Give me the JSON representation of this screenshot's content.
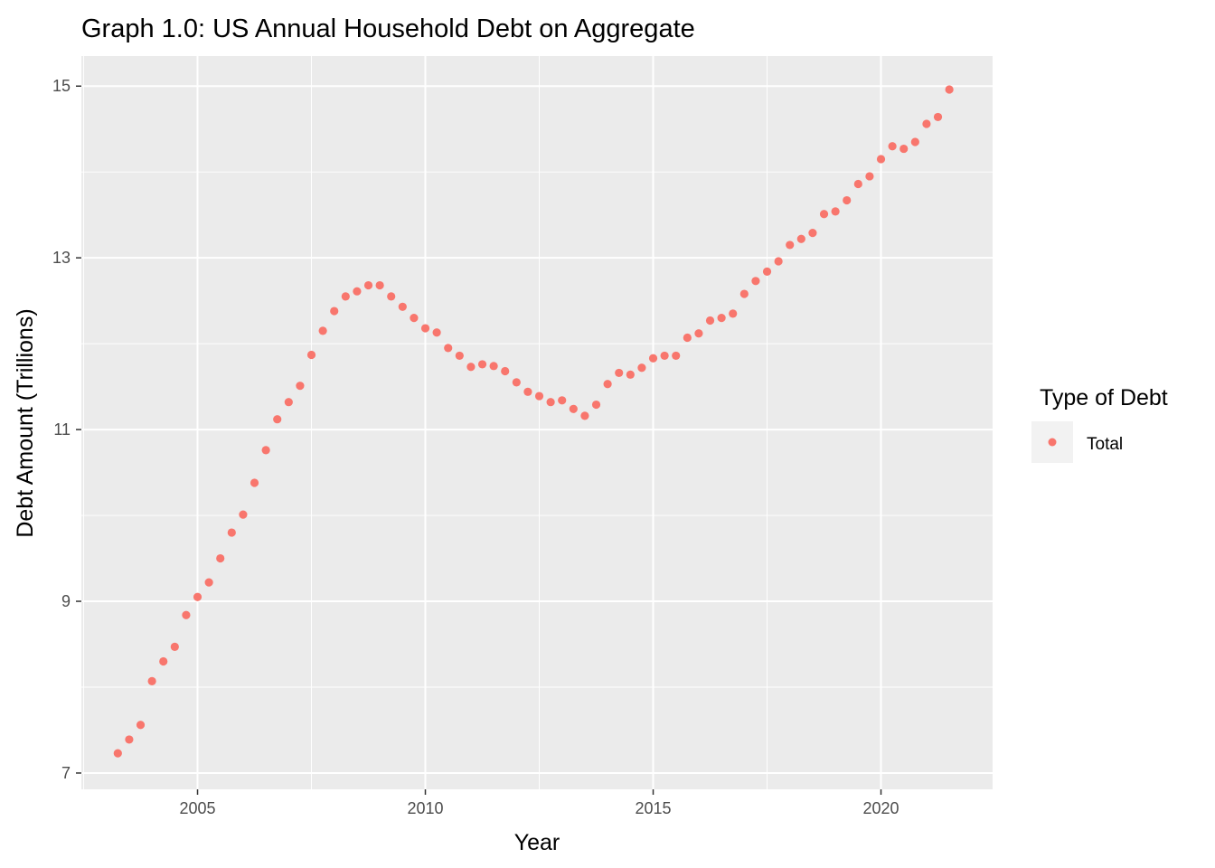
{
  "chart_data": {
    "type": "scatter",
    "title": "Graph 1.0: US Annual Household Debt on Aggregate",
    "xlabel": "Year",
    "ylabel": "Debt Amount (Trillions)",
    "xlim": [
      2002.45,
      2022.45
    ],
    "ylim": [
      6.81,
      15.35
    ],
    "x_ticks": [
      2005,
      2010,
      2015,
      2020
    ],
    "y_ticks": [
      7,
      9,
      11,
      13,
      15
    ],
    "grid": true,
    "legend": {
      "title": "Type of Debt",
      "position": "right"
    },
    "series": [
      {
        "name": "Total",
        "color": "#F8766D",
        "points": [
          {
            "x": 2003.25,
            "y": 7.23
          },
          {
            "x": 2003.5,
            "y": 7.39
          },
          {
            "x": 2003.75,
            "y": 7.56
          },
          {
            "x": 2004.0,
            "y": 8.07
          },
          {
            "x": 2004.25,
            "y": 8.3
          },
          {
            "x": 2004.5,
            "y": 8.47
          },
          {
            "x": 2004.75,
            "y": 8.84
          },
          {
            "x": 2005.0,
            "y": 9.05
          },
          {
            "x": 2005.25,
            "y": 9.22
          },
          {
            "x": 2005.5,
            "y": 9.5
          },
          {
            "x": 2005.75,
            "y": 9.8
          },
          {
            "x": 2006.0,
            "y": 10.01
          },
          {
            "x": 2006.25,
            "y": 10.38
          },
          {
            "x": 2006.5,
            "y": 10.76
          },
          {
            "x": 2006.75,
            "y": 11.12
          },
          {
            "x": 2007.0,
            "y": 11.32
          },
          {
            "x": 2007.25,
            "y": 11.51
          },
          {
            "x": 2007.5,
            "y": 11.87
          },
          {
            "x": 2007.75,
            "y": 12.15
          },
          {
            "x": 2008.0,
            "y": 12.38
          },
          {
            "x": 2008.25,
            "y": 12.55
          },
          {
            "x": 2008.5,
            "y": 12.61
          },
          {
            "x": 2008.75,
            "y": 12.68
          },
          {
            "x": 2009.0,
            "y": 12.68
          },
          {
            "x": 2009.25,
            "y": 12.55
          },
          {
            "x": 2009.5,
            "y": 12.43
          },
          {
            "x": 2009.75,
            "y": 12.3
          },
          {
            "x": 2010.0,
            "y": 12.18
          },
          {
            "x": 2010.25,
            "y": 12.13
          },
          {
            "x": 2010.5,
            "y": 11.95
          },
          {
            "x": 2010.75,
            "y": 11.86
          },
          {
            "x": 2011.0,
            "y": 11.73
          },
          {
            "x": 2011.25,
            "y": 11.76
          },
          {
            "x": 2011.5,
            "y": 11.74
          },
          {
            "x": 2011.75,
            "y": 11.68
          },
          {
            "x": 2012.0,
            "y": 11.55
          },
          {
            "x": 2012.25,
            "y": 11.44
          },
          {
            "x": 2012.5,
            "y": 11.39
          },
          {
            "x": 2012.75,
            "y": 11.32
          },
          {
            "x": 2013.0,
            "y": 11.34
          },
          {
            "x": 2013.25,
            "y": 11.24
          },
          {
            "x": 2013.5,
            "y": 11.16
          },
          {
            "x": 2013.75,
            "y": 11.29
          },
          {
            "x": 2014.0,
            "y": 11.53
          },
          {
            "x": 2014.25,
            "y": 11.66
          },
          {
            "x": 2014.5,
            "y": 11.64
          },
          {
            "x": 2014.75,
            "y": 11.72
          },
          {
            "x": 2015.0,
            "y": 11.83
          },
          {
            "x": 2015.25,
            "y": 11.86
          },
          {
            "x": 2015.5,
            "y": 11.86
          },
          {
            "x": 2015.75,
            "y": 12.07
          },
          {
            "x": 2016.0,
            "y": 12.12
          },
          {
            "x": 2016.25,
            "y": 12.27
          },
          {
            "x": 2016.5,
            "y": 12.3
          },
          {
            "x": 2016.75,
            "y": 12.35
          },
          {
            "x": 2017.0,
            "y": 12.58
          },
          {
            "x": 2017.25,
            "y": 12.73
          },
          {
            "x": 2017.5,
            "y": 12.84
          },
          {
            "x": 2017.75,
            "y": 12.96
          },
          {
            "x": 2018.0,
            "y": 13.15
          },
          {
            "x": 2018.25,
            "y": 13.22
          },
          {
            "x": 2018.5,
            "y": 13.29
          },
          {
            "x": 2018.75,
            "y": 13.51
          },
          {
            "x": 2019.0,
            "y": 13.54
          },
          {
            "x": 2019.25,
            "y": 13.67
          },
          {
            "x": 2019.5,
            "y": 13.86
          },
          {
            "x": 2019.75,
            "y": 13.95
          },
          {
            "x": 2020.0,
            "y": 14.15
          },
          {
            "x": 2020.25,
            "y": 14.3
          },
          {
            "x": 2020.5,
            "y": 14.27
          },
          {
            "x": 2020.75,
            "y": 14.35
          },
          {
            "x": 2021.0,
            "y": 14.56
          },
          {
            "x": 2021.25,
            "y": 14.64
          },
          {
            "x": 2021.5,
            "y": 14.96
          }
        ]
      }
    ]
  }
}
